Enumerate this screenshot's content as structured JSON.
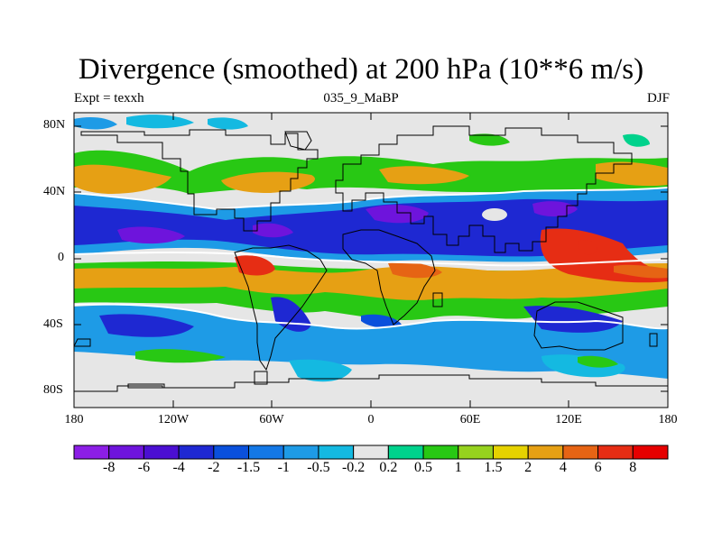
{
  "map": {
    "title": "Divergence (smoothed) at 200 hPa (10**6 m/s)",
    "subtitle_left": "Expt = texxh",
    "subtitle_center": "035_9_MaBP",
    "subtitle_right": "DJF",
    "lat_labels": [
      "80N",
      "40N",
      "0",
      "40S",
      "80S"
    ],
    "lon_labels": [
      "180",
      "120W",
      "60W",
      "0",
      "60E",
      "120E",
      "180"
    ]
  },
  "colorbar": {
    "labels": [
      "-8",
      "-6",
      "-4",
      "-2",
      "-1.5",
      "-1",
      "-0.5",
      "-0.2",
      "0.2",
      "0.5",
      "1",
      "1.5",
      "2",
      "4",
      "6",
      "8"
    ],
    "colors": [
      "#8c1ee6",
      "#6e14dc",
      "#4b0fd2",
      "#1e28d2",
      "#0a50dc",
      "#1478e6",
      "#1e9be6",
      "#14b9e1",
      "#e6e6e6",
      "#00d28c",
      "#28c814",
      "#96d21e",
      "#e6d200",
      "#e6a014",
      "#e66414",
      "#e62d14",
      "#e60000"
    ]
  },
  "palette": {
    "background": "#e6e6e6",
    "contour": "#ffffff",
    "coast": "#000000"
  }
}
